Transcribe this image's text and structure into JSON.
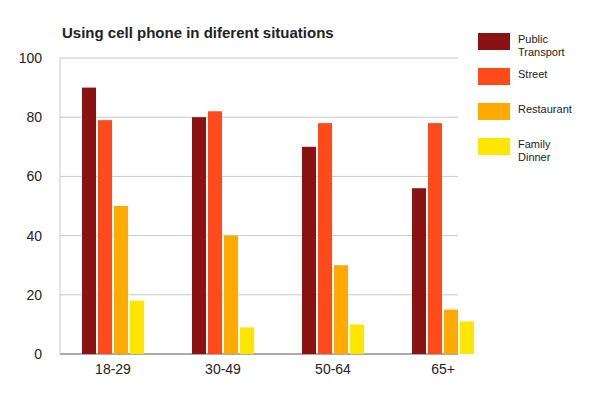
{
  "chart_data": {
    "type": "bar",
    "title": "Using cell phone in diferent situations",
    "categories": [
      "18-29",
      "30-49",
      "50-64",
      "65+"
    ],
    "series": [
      {
        "name": "Public Transport",
        "color": "#8b1212",
        "values": [
          90,
          80,
          70,
          56
        ]
      },
      {
        "name": "Street",
        "color": "#ff4a1c",
        "values": [
          79,
          82,
          78,
          78
        ]
      },
      {
        "name": "Restaurant",
        "color": "#ffaa00",
        "values": [
          50,
          40,
          30,
          15
        ]
      },
      {
        "name": "Family Dinner",
        "color": "#ffe600",
        "values": [
          18,
          9,
          10,
          11
        ]
      }
    ],
    "ylim": [
      0,
      100
    ],
    "yticks": [
      0,
      20,
      40,
      60,
      80,
      100
    ],
    "grid": true,
    "legend": "right"
  }
}
